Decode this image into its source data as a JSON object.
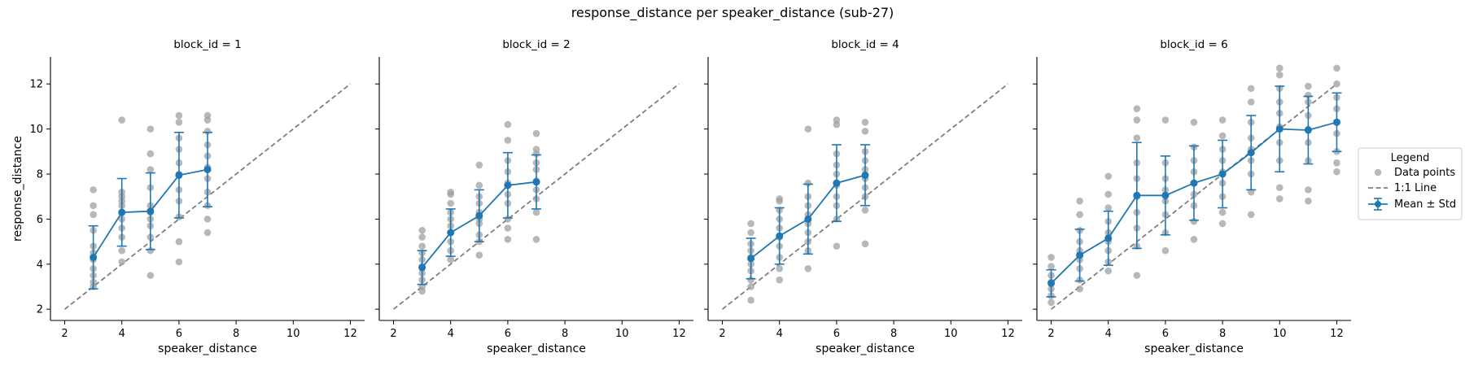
{
  "figure": {
    "title": "response_distance per speaker_distance (sub-27)"
  },
  "legend": {
    "title": "Legend",
    "placement": "right",
    "items": [
      "Data points",
      "1:1 Line",
      "Mean ± Std"
    ]
  },
  "colors": {
    "points": "#a0a0a0",
    "identity_line": "#7f7f7f",
    "mean": "#1f77b4"
  },
  "chart_data": [
    {
      "type": "scatter",
      "title": "block_id = 1",
      "xlabel": "speaker_distance",
      "ylabel": "response_distance",
      "xlim": [
        1.5,
        12.5
      ],
      "ylim": [
        1.5,
        13.2
      ],
      "xticks": [
        2,
        4,
        6,
        8,
        10,
        12
      ],
      "yticks": [
        2,
        4,
        6,
        8,
        10,
        12
      ],
      "identity_line": [
        [
          2,
          2
        ],
        [
          12,
          12
        ]
      ],
      "points": [
        [
          3,
          3.0
        ],
        [
          3,
          3.2
        ],
        [
          3,
          3.5
        ],
        [
          3,
          3.8
        ],
        [
          3,
          4.2
        ],
        [
          3,
          4.5
        ],
        [
          3,
          4.8
        ],
        [
          3,
          5.5
        ],
        [
          3,
          6.2
        ],
        [
          3,
          6.6
        ],
        [
          3,
          7.3
        ],
        [
          4,
          4.1
        ],
        [
          4,
          4.6
        ],
        [
          4,
          5.2
        ],
        [
          4,
          5.6
        ],
        [
          4,
          6.0
        ],
        [
          4,
          6.3
        ],
        [
          4,
          6.6
        ],
        [
          4,
          6.8
        ],
        [
          4,
          7.0
        ],
        [
          4,
          7.2
        ],
        [
          4,
          10.4
        ],
        [
          5,
          3.5
        ],
        [
          5,
          4.6
        ],
        [
          5,
          5.2
        ],
        [
          5,
          5.7
        ],
        [
          5,
          6.0
        ],
        [
          5,
          6.3
        ],
        [
          5,
          6.6
        ],
        [
          5,
          7.4
        ],
        [
          5,
          8.2
        ],
        [
          5,
          8.9
        ],
        [
          5,
          10.0
        ],
        [
          6,
          4.1
        ],
        [
          6,
          5.0
        ],
        [
          6,
          6.1
        ],
        [
          6,
          6.8
        ],
        [
          6,
          7.3
        ],
        [
          6,
          8.0
        ],
        [
          6,
          8.5
        ],
        [
          6,
          9.1
        ],
        [
          6,
          9.6
        ],
        [
          6,
          10.3
        ],
        [
          6,
          10.6
        ],
        [
          7,
          5.4
        ],
        [
          7,
          6.0
        ],
        [
          7,
          6.6
        ],
        [
          7,
          7.2
        ],
        [
          7,
          7.8
        ],
        [
          7,
          8.3
        ],
        [
          7,
          8.8
        ],
        [
          7,
          9.3
        ],
        [
          7,
          9.9
        ],
        [
          7,
          10.4
        ],
        [
          7,
          10.6
        ]
      ],
      "mean_std": {
        "x": [
          3,
          4,
          5,
          6,
          7
        ],
        "mean": [
          4.3,
          6.3,
          6.35,
          7.95,
          8.2
        ],
        "std": [
          1.4,
          1.5,
          1.7,
          1.9,
          1.65
        ]
      }
    },
    {
      "type": "scatter",
      "title": "block_id = 2",
      "xlabel": "speaker_distance",
      "ylabel": "",
      "xlim": [
        1.5,
        12.5
      ],
      "ylim": [
        1.5,
        13.2
      ],
      "xticks": [
        2,
        4,
        6,
        8,
        10,
        12
      ],
      "yticks": [
        2,
        4,
        6,
        8,
        10,
        12
      ],
      "identity_line": [
        [
          2,
          2
        ],
        [
          12,
          12
        ]
      ],
      "points": [
        [
          3,
          2.8
        ],
        [
          3,
          3.0
        ],
        [
          3,
          3.3
        ],
        [
          3,
          3.6
        ],
        [
          3,
          3.9
        ],
        [
          3,
          4.2
        ],
        [
          3,
          4.5
        ],
        [
          3,
          4.8
        ],
        [
          3,
          5.2
        ],
        [
          3,
          5.5
        ],
        [
          4,
          4.2
        ],
        [
          4,
          4.6
        ],
        [
          4,
          5.0
        ],
        [
          4,
          5.4
        ],
        [
          4,
          5.7
        ],
        [
          4,
          6.0
        ],
        [
          4,
          6.3
        ],
        [
          4,
          6.7
        ],
        [
          4,
          7.1
        ],
        [
          4,
          7.2
        ],
        [
          5,
          4.4
        ],
        [
          5,
          5.0
        ],
        [
          5,
          5.3
        ],
        [
          5,
          5.8
        ],
        [
          5,
          6.0
        ],
        [
          5,
          6.3
        ],
        [
          5,
          6.7
        ],
        [
          5,
          7.0
        ],
        [
          5,
          7.5
        ],
        [
          5,
          8.4
        ],
        [
          6,
          5.1
        ],
        [
          6,
          5.6
        ],
        [
          6,
          6.0
        ],
        [
          6,
          6.7
        ],
        [
          6,
          7.1
        ],
        [
          6,
          7.6
        ],
        [
          6,
          8.1
        ],
        [
          6,
          8.6
        ],
        [
          6,
          9.5
        ],
        [
          6,
          10.2
        ],
        [
          7,
          5.1
        ],
        [
          7,
          6.3
        ],
        [
          7,
          6.9
        ],
        [
          7,
          7.3
        ],
        [
          7,
          7.7
        ],
        [
          7,
          8.2
        ],
        [
          7,
          8.5
        ],
        [
          7,
          8.9
        ],
        [
          7,
          9.1
        ],
        [
          7,
          9.8
        ]
      ],
      "mean_std": {
        "x": [
          3,
          4,
          5,
          6,
          7
        ],
        "mean": [
          3.85,
          5.4,
          6.15,
          7.5,
          7.65
        ],
        "std": [
          0.75,
          1.05,
          1.15,
          1.45,
          1.2
        ]
      }
    },
    {
      "type": "scatter",
      "title": "block_id = 4",
      "xlabel": "speaker_distance",
      "ylabel": "",
      "xlim": [
        1.5,
        12.5
      ],
      "ylim": [
        1.5,
        13.2
      ],
      "xticks": [
        2,
        4,
        6,
        8,
        10,
        12
      ],
      "yticks": [
        2,
        4,
        6,
        8,
        10,
        12
      ],
      "identity_line": [
        [
          2,
          2
        ],
        [
          12,
          12
        ]
      ],
      "points": [
        [
          3,
          2.4
        ],
        [
          3,
          3.0
        ],
        [
          3,
          3.3
        ],
        [
          3,
          3.7
        ],
        [
          3,
          4.0
        ],
        [
          3,
          4.3
        ],
        [
          3,
          4.6
        ],
        [
          3,
          4.9
        ],
        [
          3,
          5.4
        ],
        [
          3,
          5.8
        ],
        [
          4,
          3.3
        ],
        [
          4,
          3.8
        ],
        [
          4,
          4.3
        ],
        [
          4,
          4.8
        ],
        [
          4,
          5.2
        ],
        [
          4,
          5.6
        ],
        [
          4,
          6.0
        ],
        [
          4,
          6.4
        ],
        [
          4,
          6.8
        ],
        [
          4,
          6.9
        ],
        [
          5,
          3.8
        ],
        [
          5,
          4.6
        ],
        [
          5,
          5.0
        ],
        [
          5,
          5.4
        ],
        [
          5,
          5.8
        ],
        [
          5,
          6.2
        ],
        [
          5,
          6.6
        ],
        [
          5,
          7.0
        ],
        [
          5,
          7.6
        ],
        [
          5,
          10.0
        ],
        [
          6,
          4.8
        ],
        [
          6,
          6.0
        ],
        [
          6,
          6.6
        ],
        [
          6,
          7.0
        ],
        [
          6,
          7.5
        ],
        [
          6,
          8.0
        ],
        [
          6,
          8.4
        ],
        [
          6,
          8.9
        ],
        [
          6,
          10.2
        ],
        [
          6,
          10.4
        ],
        [
          7,
          4.9
        ],
        [
          7,
          6.4
        ],
        [
          7,
          7.0
        ],
        [
          7,
          7.4
        ],
        [
          7,
          7.8
        ],
        [
          7,
          8.2
        ],
        [
          7,
          8.6
        ],
        [
          7,
          9.0
        ],
        [
          7,
          9.9
        ],
        [
          7,
          10.3
        ]
      ],
      "mean_std": {
        "x": [
          3,
          4,
          5,
          6,
          7
        ],
        "mean": [
          4.25,
          5.25,
          6.0,
          7.6,
          7.95
        ],
        "std": [
          0.9,
          1.25,
          1.55,
          1.7,
          1.35
        ]
      }
    },
    {
      "type": "scatter",
      "title": "block_id = 6",
      "xlabel": "speaker_distance",
      "ylabel": "",
      "xlim": [
        1.5,
        12.5
      ],
      "ylim": [
        1.5,
        13.2
      ],
      "xticks": [
        2,
        4,
        6,
        8,
        10,
        12
      ],
      "yticks": [
        2,
        4,
        6,
        8,
        10,
        12
      ],
      "identity_line": [
        [
          2,
          2
        ],
        [
          12,
          12
        ]
      ],
      "points": [
        [
          2,
          2.3
        ],
        [
          2,
          2.6
        ],
        [
          2,
          2.9
        ],
        [
          2,
          3.2
        ],
        [
          2,
          3.5
        ],
        [
          2,
          3.9
        ],
        [
          2,
          4.3
        ],
        [
          3,
          2.9
        ],
        [
          3,
          3.3
        ],
        [
          3,
          3.8
        ],
        [
          3,
          4.2
        ],
        [
          3,
          4.6
        ],
        [
          3,
          5.0
        ],
        [
          3,
          5.5
        ],
        [
          3,
          6.2
        ],
        [
          3,
          6.8
        ],
        [
          4,
          3.7
        ],
        [
          4,
          4.1
        ],
        [
          4,
          4.6
        ],
        [
          4,
          5.0
        ],
        [
          4,
          5.4
        ],
        [
          4,
          5.9
        ],
        [
          4,
          6.5
        ],
        [
          4,
          7.1
        ],
        [
          4,
          7.9
        ],
        [
          5,
          3.5
        ],
        [
          5,
          4.8
        ],
        [
          5,
          5.6
        ],
        [
          5,
          6.3
        ],
        [
          5,
          7.0
        ],
        [
          5,
          7.8
        ],
        [
          5,
          8.5
        ],
        [
          5,
          9.6
        ],
        [
          5,
          10.4
        ],
        [
          5,
          10.9
        ],
        [
          6,
          4.6
        ],
        [
          6,
          5.4
        ],
        [
          6,
          6.2
        ],
        [
          6,
          6.8
        ],
        [
          6,
          7.3
        ],
        [
          6,
          7.8
        ],
        [
          6,
          8.5
        ],
        [
          6,
          10.4
        ],
        [
          7,
          5.1
        ],
        [
          7,
          5.9
        ],
        [
          7,
          6.6
        ],
        [
          7,
          7.1
        ],
        [
          7,
          7.6
        ],
        [
          7,
          8.1
        ],
        [
          7,
          8.6
        ],
        [
          7,
          9.2
        ],
        [
          7,
          10.3
        ],
        [
          8,
          5.8
        ],
        [
          8,
          6.3
        ],
        [
          8,
          7.0
        ],
        [
          8,
          7.6
        ],
        [
          8,
          8.1
        ],
        [
          8,
          8.6
        ],
        [
          8,
          9.1
        ],
        [
          8,
          9.7
        ],
        [
          8,
          10.4
        ],
        [
          9,
          6.2
        ],
        [
          9,
          7.2
        ],
        [
          9,
          8.0
        ],
        [
          9,
          8.6
        ],
        [
          9,
          9.1
        ],
        [
          9,
          9.6
        ],
        [
          9,
          10.3
        ],
        [
          9,
          11.2
        ],
        [
          9,
          11.8
        ],
        [
          10,
          6.9
        ],
        [
          10,
          7.4
        ],
        [
          10,
          8.6
        ],
        [
          10,
          9.4
        ],
        [
          10,
          10.1
        ],
        [
          10,
          10.7
        ],
        [
          10,
          11.2
        ],
        [
          10,
          11.8
        ],
        [
          10,
          12.4
        ],
        [
          10,
          12.7
        ],
        [
          11,
          6.8
        ],
        [
          11,
          7.3
        ],
        [
          11,
          8.6
        ],
        [
          11,
          9.4
        ],
        [
          11,
          10.0
        ],
        [
          11,
          10.6
        ],
        [
          11,
          11.2
        ],
        [
          11,
          11.5
        ],
        [
          11,
          11.9
        ],
        [
          12,
          8.1
        ],
        [
          12,
          8.5
        ],
        [
          12,
          9.0
        ],
        [
          12,
          9.8
        ],
        [
          12,
          10.3
        ],
        [
          12,
          10.9
        ],
        [
          12,
          11.4
        ],
        [
          12,
          12.0
        ],
        [
          12,
          12.7
        ]
      ],
      "mean_std": {
        "x": [
          2,
          3,
          4,
          5,
          6,
          7,
          8,
          9,
          10,
          11,
          12
        ],
        "mean": [
          3.15,
          4.4,
          5.15,
          7.05,
          7.05,
          7.6,
          8.0,
          8.95,
          10.0,
          9.95,
          10.3
        ],
        "std": [
          0.6,
          1.15,
          1.2,
          2.35,
          1.75,
          1.65,
          1.5,
          1.65,
          1.9,
          1.5,
          1.3
        ]
      }
    }
  ]
}
